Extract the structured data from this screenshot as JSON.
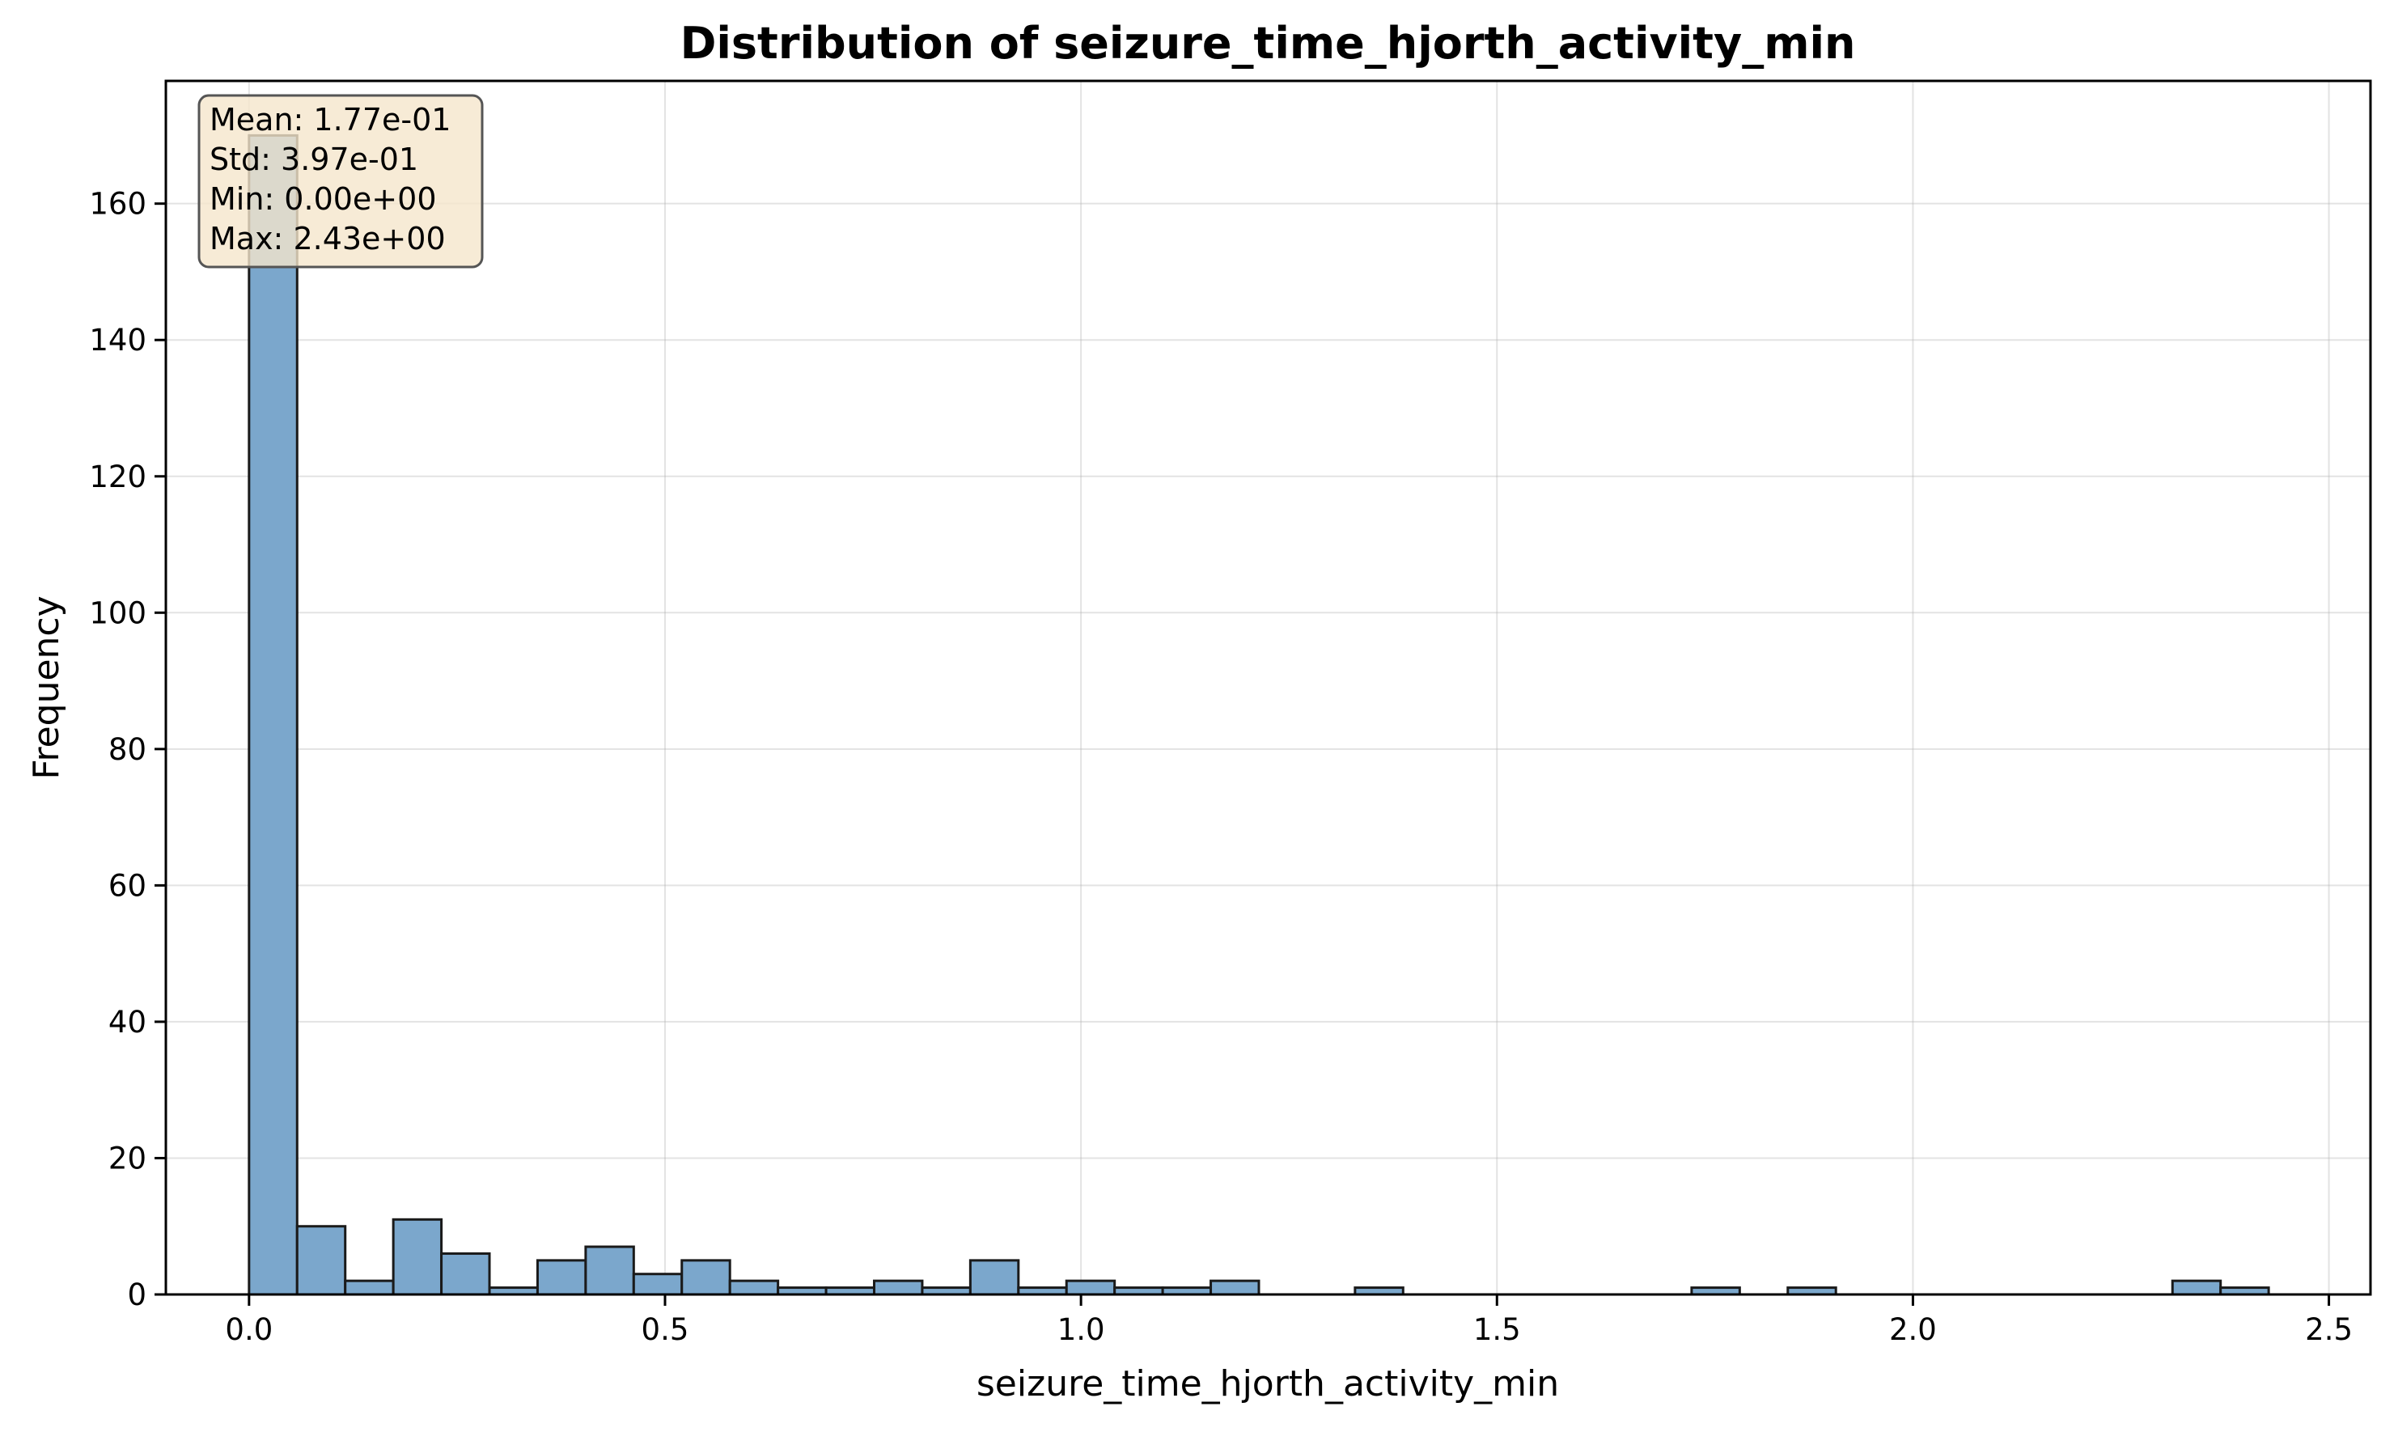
{
  "chart_data": {
    "type": "bar",
    "title": "Distribution of seizure_time_hjorth_activity_min",
    "xlabel": "seizure_time_hjorth_activity_min",
    "ylabel": "Frequency",
    "xlim": [
      -0.1,
      2.55
    ],
    "ylim": [
      0,
      178
    ],
    "xticks": [
      0.0,
      0.5,
      1.0,
      1.5,
      2.0,
      2.5
    ],
    "xtick_labels": [
      "0.0",
      "0.5",
      "1.0",
      "1.5",
      "2.0",
      "2.5"
    ],
    "yticks": [
      0,
      20,
      40,
      60,
      80,
      100,
      120,
      140,
      160
    ],
    "ytick_labels": [
      "0",
      "20",
      "40",
      "60",
      "80",
      "100",
      "120",
      "140",
      "160"
    ],
    "grid": true,
    "bin_start": 0.0,
    "bin_width": 0.0578,
    "counts": [
      170,
      10,
      2,
      11,
      6,
      1,
      5,
      7,
      3,
      5,
      2,
      1,
      1,
      2,
      1,
      5,
      1,
      2,
      1,
      1,
      2,
      0,
      0,
      1,
      0,
      0,
      0,
      0,
      0,
      0,
      1,
      0,
      1,
      0,
      0,
      0,
      0,
      0,
      0,
      0,
      2,
      1
    ],
    "bar_color": "#7ba7cc",
    "edge_color": "#1a1a1a",
    "stats_box": {
      "lines": [
        "Mean: 1.77e-01",
        "Std: 3.97e-01",
        "Min: 0.00e+00",
        "Max: 2.43e+00"
      ],
      "placement": "top-left",
      "facecolor": "#f5e6cc",
      "edgecolor": "#555555"
    }
  }
}
